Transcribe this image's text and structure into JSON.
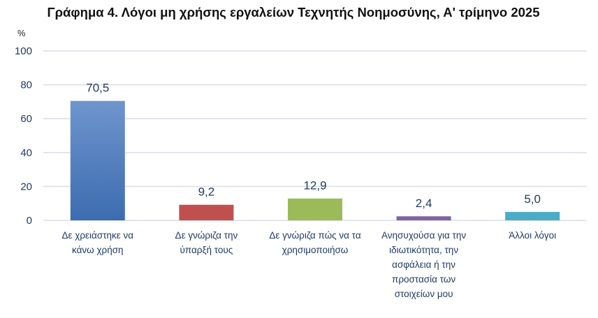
{
  "chart_data": {
    "type": "bar",
    "title": "Γράφημα 4. Λόγοι μη χρήσης εργαλείων Τεχνητής Νοημοσύνης, Α' τρίμηνο 2025",
    "ylabel": "%",
    "xlabel": "",
    "ylim": [
      0,
      100
    ],
    "yticks": [
      0,
      20,
      40,
      60,
      80,
      100
    ],
    "grid": true,
    "legend": "none",
    "categories": [
      [
        "Δε χρειάστηκε να",
        "κάνω χρήση"
      ],
      [
        "Δε γνώριζα την",
        "ύπαρξή τους"
      ],
      [
        "Δε γνώριζα πώς να τα",
        "χρησιμοποιήσω"
      ],
      [
        "Ανησυχούσα για την",
        "ιδιωτικότητα, την",
        "ασφάλεια ή την",
        "προστασία των",
        "στοιχείων μου"
      ],
      [
        "Άλλοι λόγοι"
      ]
    ],
    "values": [
      70.5,
      9.2,
      12.9,
      2.4,
      5.0
    ],
    "data_labels": [
      "70,5",
      "9,2",
      "12,9",
      "2,4",
      "5,0"
    ],
    "colors": [
      "#4f7fc0",
      "#c0504d",
      "#9bbb59",
      "#8064a2",
      "#4bacc6"
    ]
  }
}
